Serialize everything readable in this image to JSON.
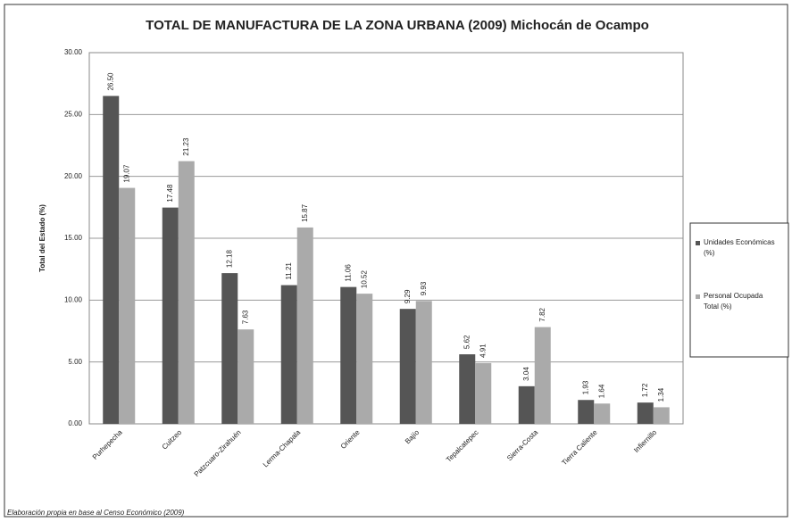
{
  "chart_data": {
    "type": "bar",
    "title": "TOTAL DE MANUFACTURA DE LA ZONA URBANA (2009) Michocán de Ocampo",
    "y_label": "Total del Estado (%)",
    "footnote": "Elaboración propia en base al Censo Económico (2009)",
    "categories": [
      "Purhepecha",
      "Cuitzeo",
      "Patzcuaro-Zirahuén",
      "Lerma-Chapala",
      "Oriente",
      "Bajío",
      "Tepalcatepec",
      "Sierra-Costa",
      "Tierra Caliente",
      "Infiernillo"
    ],
    "series": [
      {
        "name": "Unidades Económicas (%)",
        "color": "#555555",
        "values": [
          26.5,
          17.48,
          12.18,
          11.21,
          11.06,
          9.29,
          5.62,
          3.04,
          1.93,
          1.72
        ],
        "value_labels": [
          "26.50",
          "17.48",
          "12.18",
          "11.21",
          "11.06",
          "9.29",
          "5.62",
          "3.04",
          "1.93",
          "1.72"
        ]
      },
      {
        "name": "Personal Ocupada Total (%)",
        "color": "#aaaaaa",
        "values": [
          19.07,
          21.23,
          7.63,
          15.87,
          10.52,
          9.93,
          4.91,
          7.82,
          1.64,
          1.34
        ],
        "value_labels": [
          "19.07",
          "21.23",
          "7.63",
          "15.87",
          "10.52",
          "9.93",
          "4.91",
          "7.82",
          "1.64",
          "1.34"
        ]
      }
    ],
    "ylim": [
      0,
      30
    ],
    "yticks": [
      {
        "value": 0,
        "label": "0.00"
      },
      {
        "value": 5,
        "label": "5.00"
      },
      {
        "value": 10,
        "label": "10.00"
      },
      {
        "value": 15,
        "label": "15.00"
      },
      {
        "value": 20,
        "label": "20.00"
      },
      {
        "value": 25,
        "label": "25.00"
      },
      {
        "value": 30,
        "label": "30.00"
      }
    ],
    "grid": true,
    "legend": "right"
  }
}
